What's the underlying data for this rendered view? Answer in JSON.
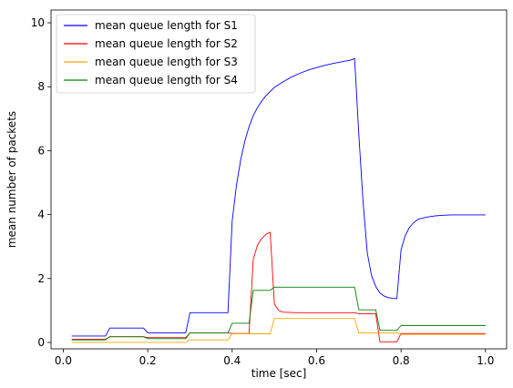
{
  "chart_data": {
    "type": "line",
    "title": "",
    "xlabel": "time [sec]",
    "ylabel": "mean number of packets",
    "xlim": [
      -0.029,
      1.05
    ],
    "ylim": [
      -0.2,
      10.4
    ],
    "xticks": [
      0.0,
      0.2,
      0.4,
      0.6,
      0.8,
      1.0
    ],
    "xtick_labels": [
      "0.0",
      "0.2",
      "0.4",
      "0.6",
      "0.8",
      "1.0"
    ],
    "yticks": [
      0,
      2,
      4,
      6,
      8,
      10
    ],
    "ytick_labels": [
      "0",
      "2",
      "4",
      "6",
      "8",
      "10"
    ],
    "grid": false,
    "legend_position": "top-left",
    "series": [
      {
        "name": "mean queue length for S1",
        "color": "#0000ff",
        "x": [
          0.02,
          0.1,
          0.11,
          0.19,
          0.2,
          0.29,
          0.3,
          0.39,
          0.4,
          0.41,
          0.42,
          0.43,
          0.44,
          0.45,
          0.46,
          0.47,
          0.48,
          0.49,
          0.5,
          0.52,
          0.54,
          0.56,
          0.58,
          0.6,
          0.62,
          0.64,
          0.66,
          0.68,
          0.69,
          0.7,
          0.71,
          0.72,
          0.73,
          0.74,
          0.75,
          0.76,
          0.77,
          0.78,
          0.79,
          0.8,
          0.81,
          0.82,
          0.83,
          0.84,
          0.86,
          0.88,
          0.9,
          0.92,
          0.95,
          1.0
        ],
        "y": [
          0.2,
          0.2,
          0.45,
          0.45,
          0.3,
          0.3,
          0.93,
          0.93,
          3.8,
          4.9,
          5.7,
          6.3,
          6.75,
          7.1,
          7.35,
          7.55,
          7.72,
          7.85,
          7.98,
          8.15,
          8.3,
          8.42,
          8.52,
          8.6,
          8.67,
          8.73,
          8.78,
          8.83,
          8.88,
          6.5,
          4.4,
          2.8,
          2.1,
          1.75,
          1.55,
          1.45,
          1.4,
          1.38,
          1.37,
          2.9,
          3.35,
          3.6,
          3.75,
          3.85,
          3.92,
          3.96,
          3.98,
          3.99,
          3.99,
          3.99
        ]
      },
      {
        "name": "mean queue length for S2",
        "color": "#ff0000",
        "x": [
          0.02,
          0.1,
          0.11,
          0.19,
          0.2,
          0.29,
          0.3,
          0.39,
          0.4,
          0.44,
          0.45,
          0.46,
          0.47,
          0.48,
          0.49,
          0.5,
          0.51,
          0.52,
          0.55,
          0.6,
          0.69,
          0.7,
          0.74,
          0.75,
          0.79,
          0.8,
          1.0
        ],
        "y": [
          0.1,
          0.1,
          0.18,
          0.18,
          0.15,
          0.15,
          0.3,
          0.3,
          0.28,
          0.28,
          2.6,
          3.05,
          3.25,
          3.38,
          3.45,
          1.2,
          1.0,
          0.95,
          0.93,
          0.93,
          0.93,
          0.9,
          0.9,
          0.02,
          0.02,
          0.28,
          0.28
        ]
      },
      {
        "name": "mean queue length for S3",
        "color": "#ffa500",
        "x": [
          0.02,
          0.29,
          0.3,
          0.39,
          0.4,
          0.49,
          0.5,
          0.69,
          0.7,
          0.79,
          0.8,
          1.0
        ],
        "y": [
          0.0,
          0.0,
          0.08,
          0.08,
          0.27,
          0.27,
          0.75,
          0.75,
          0.3,
          0.3,
          0.25,
          0.25
        ]
      },
      {
        "name": "mean queue length for S4",
        "color": "#008000",
        "x": [
          0.02,
          0.1,
          0.11,
          0.19,
          0.2,
          0.29,
          0.3,
          0.39,
          0.4,
          0.44,
          0.45,
          0.49,
          0.5,
          0.69,
          0.7,
          0.74,
          0.75,
          0.79,
          0.8,
          1.0
        ],
        "y": [
          0.08,
          0.08,
          0.18,
          0.18,
          0.12,
          0.12,
          0.3,
          0.3,
          0.6,
          0.6,
          1.63,
          1.63,
          1.73,
          1.73,
          1.02,
          1.02,
          0.38,
          0.38,
          0.53,
          0.53
        ]
      }
    ]
  }
}
